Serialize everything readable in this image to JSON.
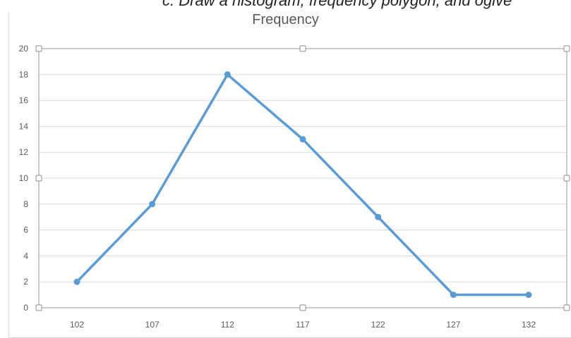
{
  "top_caption": "c. Draw a histogram, frequency polygon, and ogive",
  "chart_data": {
    "type": "line",
    "title": "Frequency",
    "xlabel": "",
    "ylabel": "",
    "categories": [
      "102",
      "107",
      "112",
      "117",
      "122",
      "127",
      "132"
    ],
    "series": [
      {
        "values": [
          2,
          8,
          18,
          13,
          7,
          1,
          1
        ]
      }
    ],
    "ylim": [
      0,
      20
    ],
    "yticks": [
      0,
      2,
      4,
      6,
      8,
      10,
      12,
      14,
      16,
      18,
      20
    ],
    "grid": true,
    "line_color": "#5b9bd5",
    "grid_color": "#d9d9d9"
  }
}
